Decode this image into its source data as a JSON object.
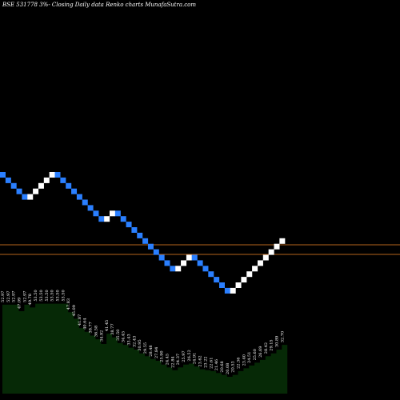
{
  "header": {
    "title": "BSE 531778  3%-  Closing Daily data  Renko  charts MunafaSutra.com"
  },
  "colors": {
    "background": "#000000",
    "brick_up": "#ffffff",
    "brick_down": "#2a7fff",
    "reference_lines": "#b5651d",
    "volume_fill": "#062906",
    "label_text": "#ffffff"
  },
  "chart_data": {
    "type": "renko",
    "brick_size_label": "3%",
    "brick_directions": [
      "down",
      "down",
      "down",
      "down",
      "down",
      "up",
      "up",
      "up",
      "up",
      "up",
      "down",
      "down",
      "down",
      "down",
      "down",
      "down",
      "down",
      "down",
      "down",
      "up",
      "up",
      "down",
      "down",
      "down",
      "down",
      "down",
      "down",
      "down",
      "down",
      "down",
      "down",
      "down",
      "up",
      "up",
      "up",
      "down",
      "down",
      "down",
      "down",
      "down",
      "down",
      "down",
      "up",
      "up",
      "up",
      "up",
      "up",
      "up",
      "up",
      "up",
      "up",
      "up"
    ],
    "reference_levels": [
      31.8,
      30.9
    ],
    "price_labels": [
      "52.97",
      "52.97",
      "52.97",
      "47.09",
      "52.97",
      "49.78",
      "53.50",
      "53.50",
      "53.50",
      "53.50",
      "53.50",
      "53.50",
      "47.83",
      "45.09",
      "41.87",
      "40.64",
      "38.77",
      "36.58",
      "34.92",
      "41.45",
      "38.77",
      "35.50",
      "34.45",
      "33.43",
      "32.43",
      "30.95",
      "29.55",
      "28.48",
      "27.84",
      "25.90",
      "24.45",
      "22.84",
      "24.37",
      "25.97",
      "26.52",
      "24.91",
      "23.62",
      "23.22",
      "22.61",
      "21.46",
      "20.68",
      "20.08",
      "20.53",
      "22.36",
      "23.40",
      "24.51",
      "25.60",
      "26.69",
      "28.42",
      "29.15",
      "30.89",
      "32.70"
    ],
    "volume_levels": [
      0.95,
      0.95,
      0.95,
      0.88,
      0.95,
      0.92,
      0.96,
      0.96,
      0.96,
      0.96,
      0.96,
      0.96,
      0.87,
      0.8,
      0.7,
      0.66,
      0.62,
      0.58,
      0.53,
      0.64,
      0.6,
      0.54,
      0.52,
      0.49,
      0.47,
      0.43,
      0.4,
      0.37,
      0.35,
      0.31,
      0.28,
      0.25,
      0.28,
      0.31,
      0.32,
      0.29,
      0.26,
      0.25,
      0.24,
      0.22,
      0.2,
      0.18,
      0.2,
      0.24,
      0.27,
      0.3,
      0.33,
      0.36,
      0.4,
      0.43,
      0.47,
      0.52
    ],
    "grid": false,
    "legend": "none"
  }
}
